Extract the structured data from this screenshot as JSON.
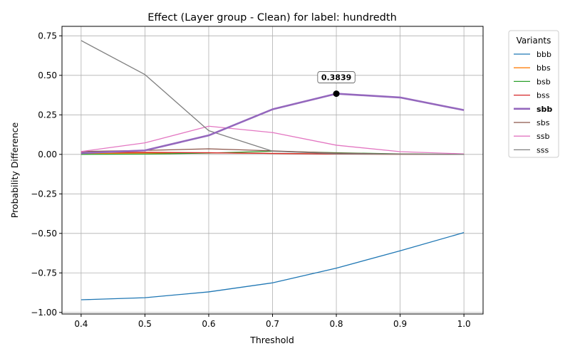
{
  "chart_data": {
    "type": "line",
    "title": "Effect (Layer group - Clean) for label: hundredth",
    "xlabel": "Threshold",
    "ylabel": "Probability Difference",
    "x": [
      0.4,
      0.5,
      0.6,
      0.7,
      0.8,
      0.9,
      1.0
    ],
    "x_ticks": [
      "0.4",
      "0.5",
      "0.6",
      "0.7",
      "0.8",
      "0.9",
      "1.0"
    ],
    "y_ticks": [
      "−1.00",
      "−0.75",
      "−0.50",
      "−0.25",
      "0.00",
      "0.25",
      "0.50",
      "0.75"
    ],
    "y_tick_values": [
      -1.0,
      -0.75,
      -0.5,
      -0.25,
      0.0,
      0.25,
      0.5,
      0.75
    ],
    "xlim": [
      0.37,
      1.03
    ],
    "ylim": [
      -1.01,
      0.81
    ],
    "grid": true,
    "legend": {
      "title": "Variants",
      "placement": "outside-right"
    },
    "series": [
      {
        "name": "bbb",
        "color": "#1f77b4",
        "highlight": false,
        "values": [
          -0.92,
          -0.907,
          -0.87,
          -0.813,
          -0.72,
          -0.61,
          -0.495
        ]
      },
      {
        "name": "bbs",
        "color": "#ff7f0e",
        "highlight": false,
        "values": [
          0.005,
          0.008,
          0.01,
          0.006,
          0.003,
          0.001,
          0.0
        ]
      },
      {
        "name": "bsb",
        "color": "#2ca02c",
        "highlight": false,
        "values": [
          0.0,
          0.002,
          0.008,
          0.02,
          0.01,
          0.003,
          0.0
        ]
      },
      {
        "name": "bss",
        "color": "#d62728",
        "highlight": false,
        "values": [
          0.012,
          0.013,
          0.01,
          0.006,
          0.002,
          0.001,
          0.0
        ]
      },
      {
        "name": "sbb",
        "color": "#9467bd",
        "highlight": true,
        "values": [
          0.008,
          0.025,
          0.12,
          0.285,
          0.3839,
          0.36,
          0.28
        ]
      },
      {
        "name": "sbs",
        "color": "#8c564b",
        "highlight": false,
        "values": [
          0.018,
          0.025,
          0.035,
          0.022,
          0.008,
          0.002,
          0.0
        ]
      },
      {
        "name": "ssb",
        "color": "#e377c2",
        "highlight": false,
        "values": [
          0.018,
          0.073,
          0.178,
          0.138,
          0.058,
          0.017,
          0.003
        ]
      },
      {
        "name": "sss",
        "color": "#7f7f7f",
        "highlight": false,
        "values": [
          0.72,
          0.505,
          0.15,
          0.02,
          0.004,
          0.001,
          0.0
        ]
      }
    ],
    "annotation": {
      "text": "0.3839",
      "x": 0.8,
      "y": 0.3839,
      "series": "sbb"
    }
  }
}
